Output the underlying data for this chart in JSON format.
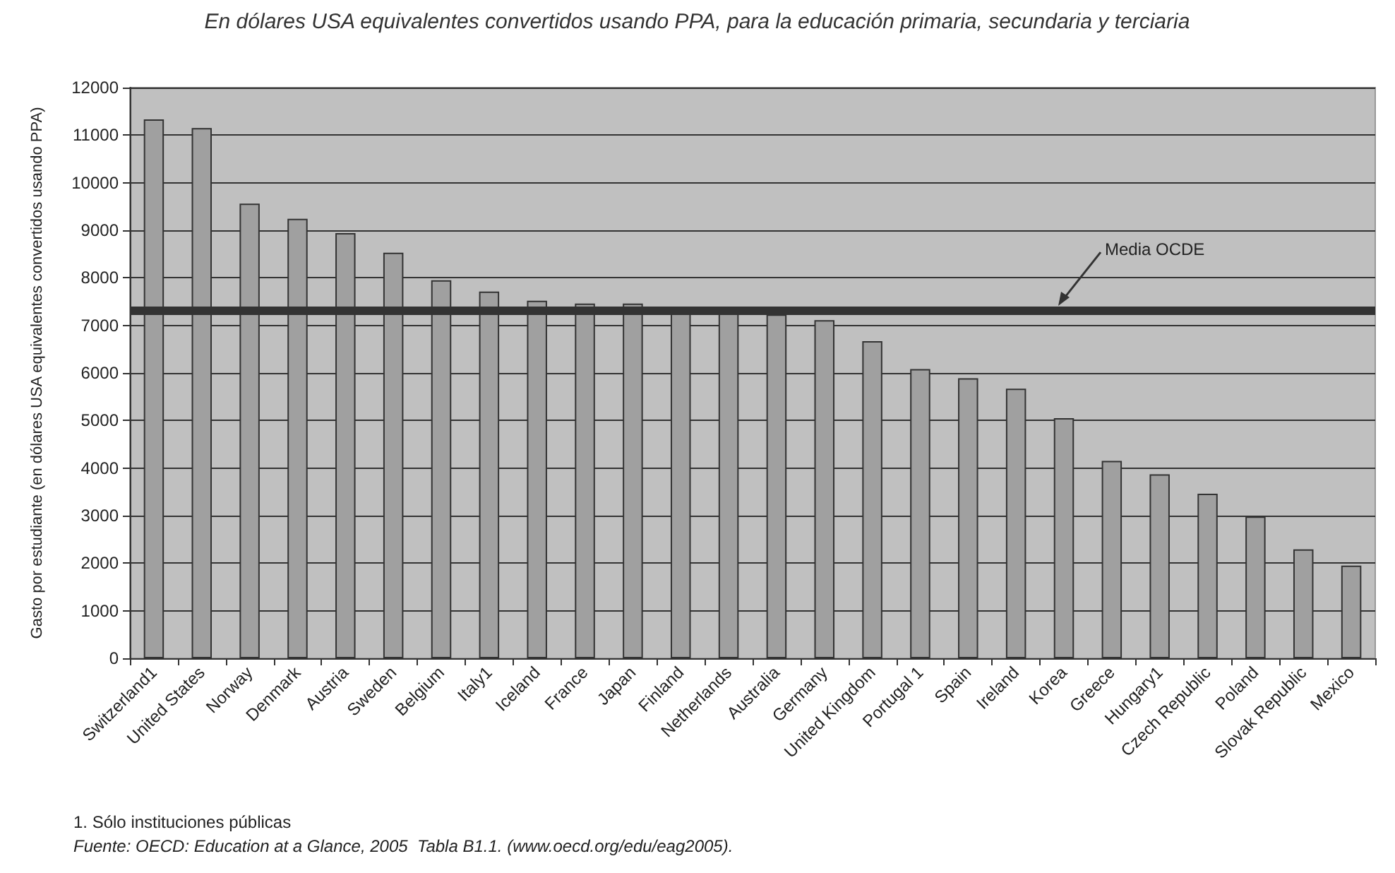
{
  "chart_data": {
    "type": "bar",
    "title": "En dólares USA equivalentes convertidos usando PPA, para la educación primaria, secundaria y terciaria",
    "ylabel": "Gasto por estudiante (en dólares USA equivalentes convertidos usando PPA)",
    "categories": [
      "Switzerland1",
      "United States",
      "Norway",
      "Denmark",
      "Austria",
      "Sweden",
      "Belgium",
      "Italy1",
      "Iceland",
      "France",
      "Japan",
      "Finland",
      "Netherlands",
      "Australia",
      "Germany",
      "United Kingdom",
      "Portugal 1",
      "Spain",
      "Ireland",
      "Korea",
      "Greece",
      "Hungary1",
      "Czech Republic",
      "Poland",
      "Slovak Republic",
      "Mexico"
    ],
    "values": [
      11330,
      11150,
      9560,
      9240,
      8940,
      8530,
      7950,
      7710,
      7520,
      7460,
      7460,
      7300,
      7250,
      7230,
      7110,
      6670,
      6080,
      5890,
      5670,
      5050,
      4150,
      3870,
      3460,
      2980,
      2290,
      1950
    ],
    "color": "#a0a0a0",
    "ylim": [
      0,
      12000
    ],
    "yticks": [
      0,
      1000,
      2000,
      3000,
      4000,
      5000,
      6000,
      7000,
      8000,
      9000,
      10000,
      11000,
      12000
    ],
    "grid": "y",
    "ref_lines": [
      {
        "axis": "y",
        "value": 7320,
        "label": "Media OCDE",
        "color": "#333333"
      }
    ],
    "annotations": [
      "1. Sólo instituciones públicas",
      "Fuente: OECD: Education at a Glance, 2005  Tabla B1.1. (www.oecd.org/edu/eag2005)."
    ]
  }
}
